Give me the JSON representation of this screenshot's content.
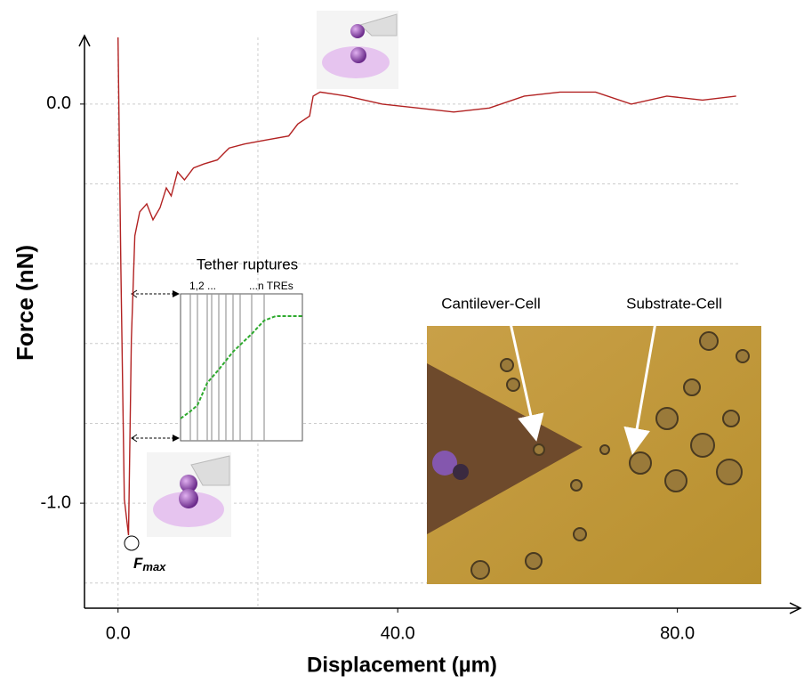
{
  "chart_data": {
    "type": "line",
    "xlabel": "Displacement (µm)",
    "ylabel": "Force (nN)",
    "x": [
      0,
      0.4,
      0.9,
      1.5,
      1.9,
      2.4,
      3.1,
      4.1,
      5.0,
      6.0,
      6.9,
      7.6,
      8.5,
      9.5,
      10.8,
      12.3,
      14.2,
      15.9,
      18.1,
      21.2,
      24.4,
      25.7,
      27.4,
      27.9,
      28.9,
      32.7,
      37.8,
      42.9,
      48.0,
      53.1,
      58.1,
      63.2,
      68.3,
      73.4,
      78.5,
      83.6,
      88.4
    ],
    "values": [
      0.167,
      -0.41,
      -0.99,
      -1.08,
      -0.59,
      -0.33,
      -0.27,
      -0.25,
      -0.29,
      -0.26,
      -0.21,
      -0.23,
      -0.17,
      -0.19,
      -0.16,
      -0.15,
      -0.14,
      -0.11,
      -0.1,
      -0.09,
      -0.08,
      -0.05,
      -0.03,
      0.02,
      0.03,
      0.02,
      0.0,
      -0.01,
      -0.02,
      -0.01,
      0.02,
      0.03,
      0.03,
      0.0,
      0.02,
      0.01,
      0.02
    ],
    "color": "#b22222",
    "xlim": [
      -4.8,
      97.6
    ],
    "ylim": [
      -1.263,
      0.167
    ],
    "xticks": [
      {
        "value": 0,
        "label": "0.0"
      },
      {
        "value": 40,
        "label": "40.0"
      },
      {
        "value": 80,
        "label": "80.0"
      }
    ],
    "yticks": [
      {
        "value": 0,
        "label": "0.0"
      },
      {
        "value": -1,
        "label": "-1.0"
      }
    ],
    "ygrid": [
      -1.2,
      -1.0,
      -0.8,
      -0.6,
      -0.4,
      -0.2,
      0
    ],
    "xgrid": [
      0,
      20
    ],
    "annotations": {
      "fmax": "F",
      "fmax_subscript": "max",
      "inset_title": "Tether ruptures",
      "inset_start": "1,2 ...",
      "inset_end": "...n TREs",
      "cell_left": "Cantilever-Cell",
      "cell_right": "Substrate-Cell"
    }
  }
}
